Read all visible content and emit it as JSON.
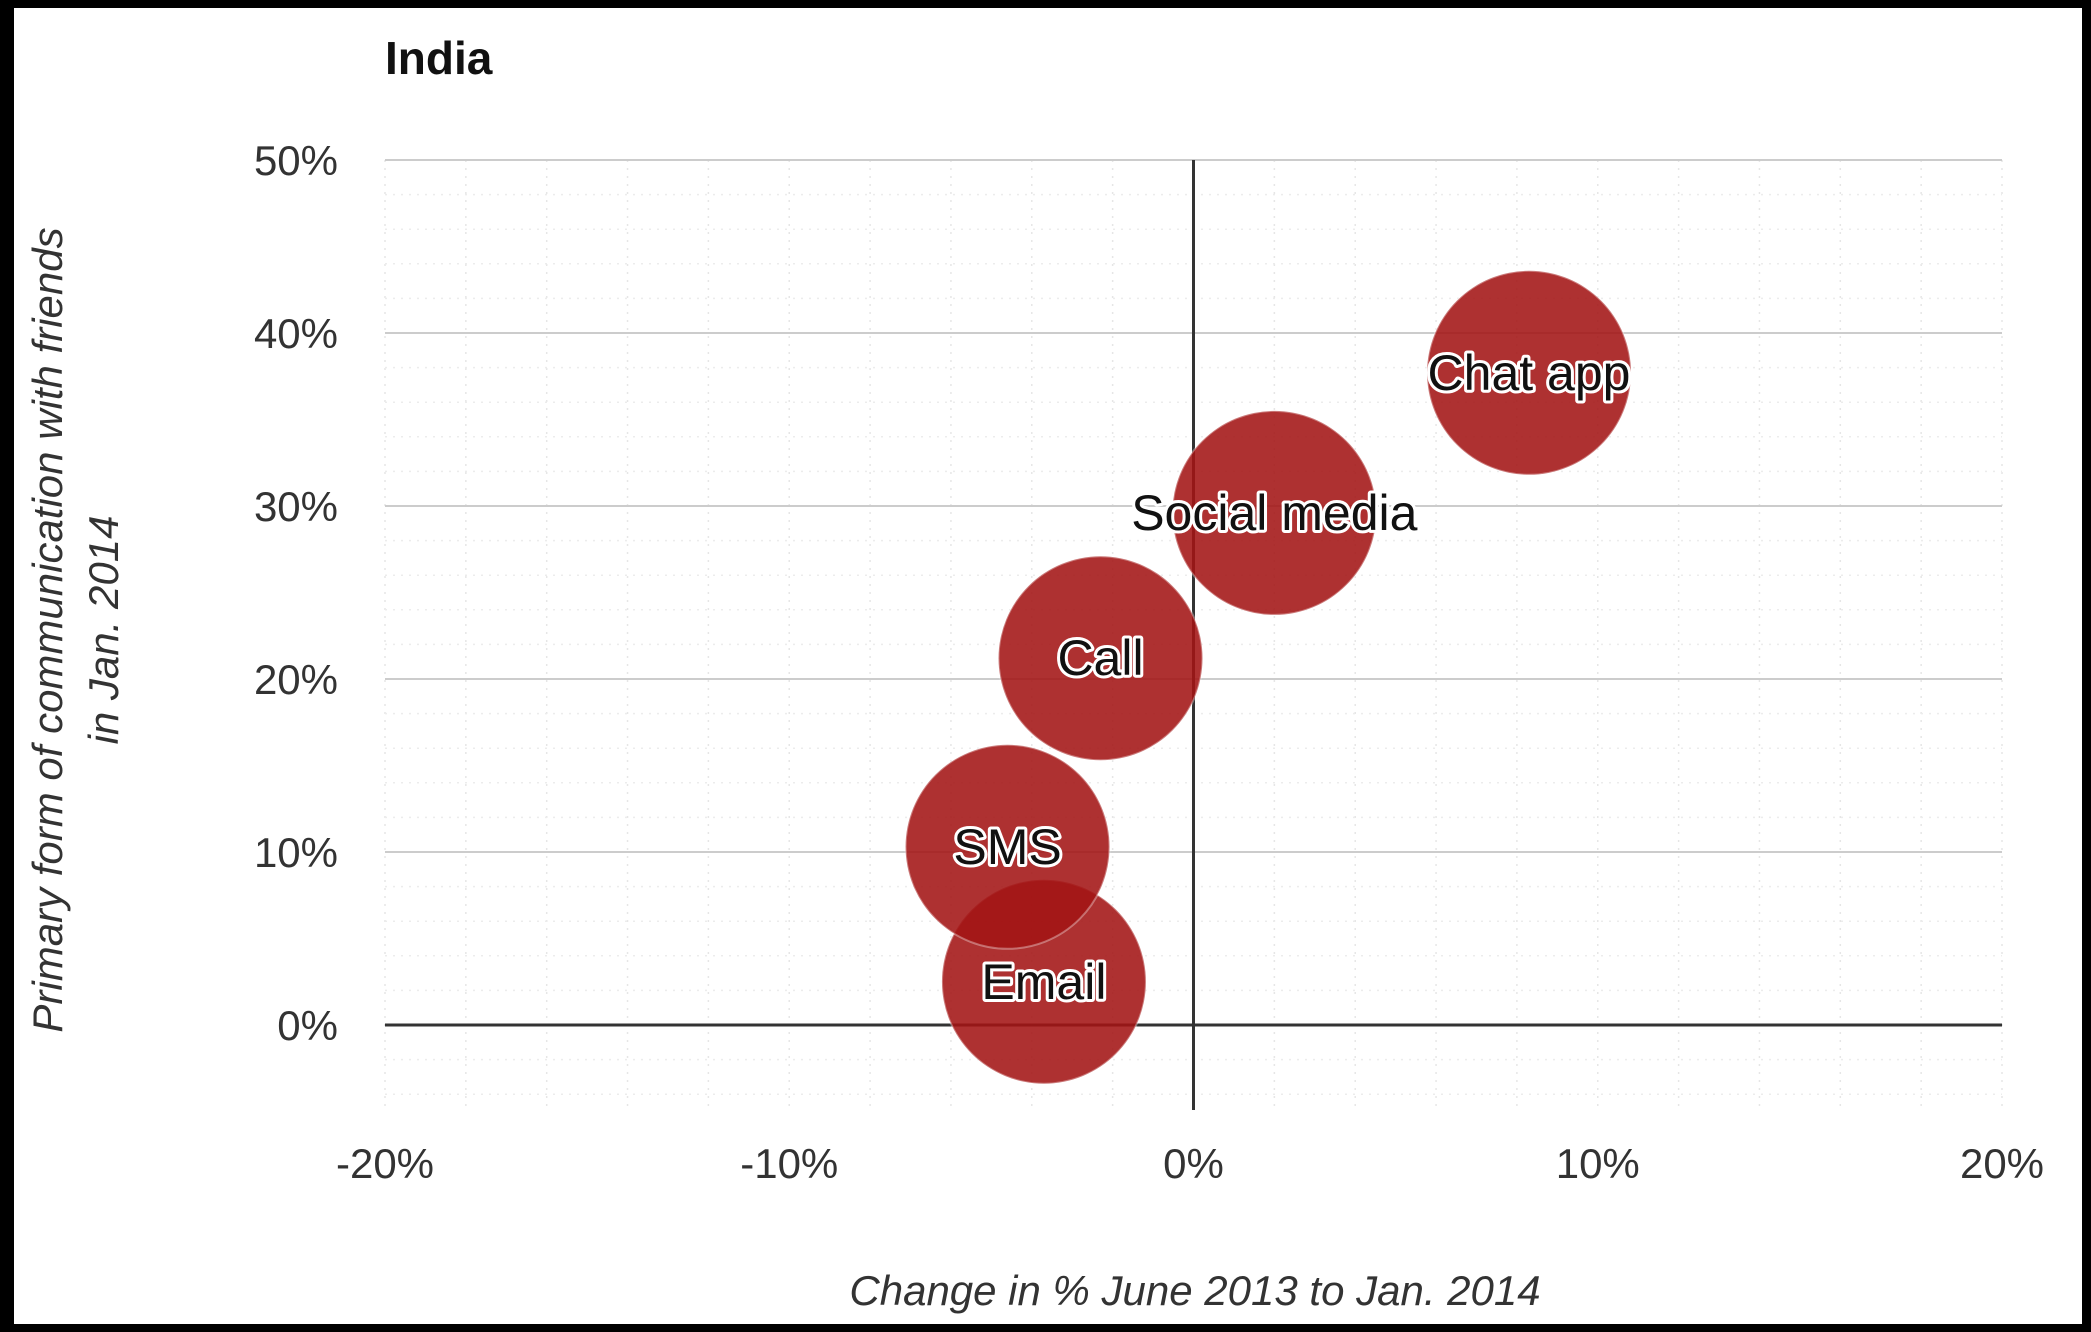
{
  "chart_data": {
    "type": "scatter",
    "title": "India",
    "xlabel": "Change in % June 2013 to Jan. 2014",
    "ylabel": [
      "Primary form of communication with friends",
      "in Jan. 2014"
    ],
    "xlim": [
      -20,
      20
    ],
    "ylim": [
      -5,
      50
    ],
    "x_ticks": [
      -20,
      -10,
      0,
      10,
      20
    ],
    "x_tick_labels": [
      "-20%",
      "-10%",
      "0%",
      "10%",
      "20%"
    ],
    "y_ticks": [
      0,
      10,
      20,
      30,
      40,
      50
    ],
    "y_tick_labels": [
      "0%",
      "10%",
      "20%",
      "30%",
      "40%",
      "50%"
    ],
    "grid": true,
    "bubble_color": "#a31515",
    "points": [
      {
        "label": "Email",
        "x": -3.7,
        "y": 2.5
      },
      {
        "label": "SMS",
        "x": -4.6,
        "y": 10.3
      },
      {
        "label": "Call",
        "x": -2.3,
        "y": 21.2
      },
      {
        "label": "Social media",
        "x": 2.0,
        "y": 29.6
      },
      {
        "label": "Chat app",
        "x": 8.3,
        "y": 37.7
      }
    ]
  }
}
